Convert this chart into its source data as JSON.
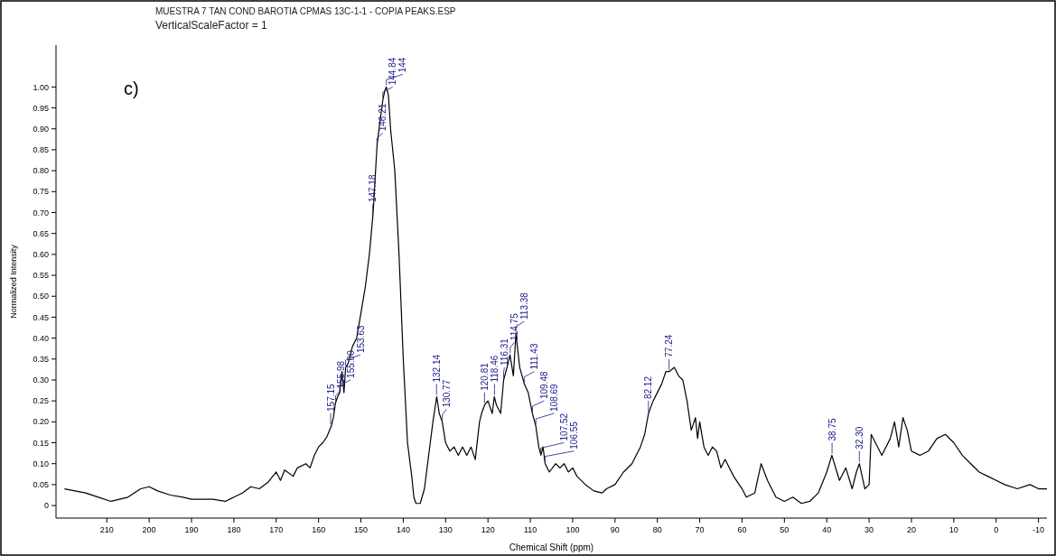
{
  "chart_data": {
    "type": "line",
    "title": "MUESTRA 7 TAN COND BAROTIA CPMAS 13C-1-1 - COPIA PEAKS.ESP",
    "subtitle": "VerticalScaleFactor = 1",
    "xlabel": "Chemical Shift (ppm)",
    "ylabel": "Normalized Intensity",
    "xlim": [
      222,
      -12
    ],
    "ylim": [
      -0.03,
      1.1
    ],
    "xticks": [
      210,
      200,
      190,
      180,
      170,
      160,
      150,
      140,
      130,
      120,
      110,
      100,
      90,
      80,
      70,
      60,
      50,
      40,
      30,
      20,
      10,
      0,
      -10
    ],
    "yticks": [
      0,
      {
        "value": 0.05,
        "label": "0.05"
      },
      {
        "value": 0.1,
        "label": "0.10"
      },
      {
        "value": 0.15,
        "label": "0.15"
      },
      {
        "value": 0.2,
        "label": "0.20"
      },
      {
        "value": 0.25,
        "label": "0.25"
      },
      {
        "value": 0.3,
        "label": "0.30"
      },
      {
        "value": 0.35,
        "label": "0.35"
      },
      {
        "value": 0.4,
        "label": "0.40"
      },
      {
        "value": 0.45,
        "label": "0.45"
      },
      {
        "value": 0.5,
        "label": "0.50"
      },
      {
        "value": 0.55,
        "label": "0.55"
      },
      {
        "value": 0.6,
        "label": "0.60"
      },
      {
        "value": 0.65,
        "label": "0.65"
      },
      {
        "value": 0.7,
        "label": "0.70"
      },
      {
        "value": 0.75,
        "label": "0.75"
      },
      {
        "value": 0.8,
        "label": "0.80"
      },
      {
        "value": 0.85,
        "label": "0.85"
      },
      {
        "value": 0.9,
        "label": "0.90"
      },
      {
        "value": 0.95,
        "label": "0.95"
      },
      {
        "value": 1,
        "label": "1.00"
      }
    ],
    "grid": false,
    "marker": "none",
    "line_style": "solid",
    "series": [
      {
        "color": "#000000",
        "x": [
          220,
          215,
          212,
          209,
          205,
          202,
          200,
          198,
          195,
          192,
          190,
          185,
          182,
          180,
          178,
          176,
          174,
          172,
          170,
          169,
          168,
          166,
          165,
          163,
          162,
          161,
          160,
          159,
          158,
          157,
          156.5,
          156,
          155.5,
          155,
          154.5,
          154,
          153.6,
          153,
          152,
          151,
          150,
          149,
          148,
          147.2,
          147,
          146.2,
          145.6,
          144.8,
          144.4,
          144,
          143.5,
          143,
          142,
          141,
          140,
          139,
          138,
          137.5,
          137,
          136,
          135,
          134,
          133,
          132.1,
          131.5,
          130.8,
          130,
          129,
          128,
          127,
          126,
          125,
          124,
          123,
          122,
          121.5,
          120.8,
          120,
          119,
          118.5,
          118,
          117,
          116.3,
          115.5,
          114.8,
          114,
          113.4,
          112.5,
          111.4,
          110.5,
          109.5,
          108.7,
          108,
          107.5,
          107,
          106.5,
          105.5,
          104,
          103,
          102,
          101,
          100,
          99,
          97,
          95,
          93,
          92,
          90,
          88,
          86,
          84,
          83,
          82.1,
          81,
          80,
          79,
          78,
          77.2,
          76,
          75,
          74,
          73,
          72,
          71,
          70.5,
          70,
          69,
          68,
          67,
          66,
          65,
          64,
          62,
          60,
          59,
          57,
          55.5,
          54,
          52,
          50,
          48,
          46,
          44,
          42,
          40,
          38.8,
          37,
          35.5,
          34,
          33,
          32.3,
          31,
          30,
          29.5,
          28,
          27,
          25,
          24,
          23,
          22,
          21,
          20,
          18,
          16,
          14,
          12,
          10,
          8,
          6,
          4,
          2,
          0,
          -2,
          -5,
          -8,
          -10,
          -12
        ],
        "values": [
          0.04,
          0.03,
          0.02,
          0.01,
          0.02,
          0.04,
          0.045,
          0.035,
          0.025,
          0.02,
          0.015,
          0.015,
          0.01,
          0.02,
          0.03,
          0.045,
          0.04,
          0.055,
          0.08,
          0.06,
          0.085,
          0.07,
          0.09,
          0.1,
          0.09,
          0.12,
          0.14,
          0.15,
          0.165,
          0.19,
          0.21,
          0.245,
          0.26,
          0.27,
          0.32,
          0.27,
          0.33,
          0.34,
          0.38,
          0.4,
          0.46,
          0.52,
          0.6,
          0.69,
          0.72,
          0.86,
          0.91,
          0.97,
          0.99,
          1,
          0.98,
          0.9,
          0.8,
          0.6,
          0.35,
          0.15,
          0.07,
          0.02,
          0.005,
          0.005,
          0.04,
          0.12,
          0.2,
          0.26,
          0.22,
          0.2,
          0.15,
          0.13,
          0.14,
          0.12,
          0.14,
          0.12,
          0.14,
          0.11,
          0.2,
          0.22,
          0.24,
          0.25,
          0.22,
          0.26,
          0.24,
          0.22,
          0.3,
          0.33,
          0.36,
          0.31,
          0.41,
          0.33,
          0.29,
          0.27,
          0.22,
          0.19,
          0.14,
          0.12,
          0.14,
          0.1,
          0.08,
          0.1,
          0.09,
          0.1,
          0.08,
          0.09,
          0.07,
          0.05,
          0.035,
          0.03,
          0.04,
          0.05,
          0.08,
          0.1,
          0.14,
          0.17,
          0.22,
          0.25,
          0.27,
          0.29,
          0.32,
          0.32,
          0.33,
          0.31,
          0.3,
          0.25,
          0.18,
          0.21,
          0.16,
          0.2,
          0.14,
          0.12,
          0.14,
          0.13,
          0.09,
          0.11,
          0.07,
          0.04,
          0.02,
          0.03,
          0.1,
          0.06,
          0.02,
          0.01,
          0.02,
          0.005,
          0.01,
          0.03,
          0.08,
          0.12,
          0.06,
          0.09,
          0.04,
          0.08,
          0.1,
          0.04,
          0.05,
          0.17,
          0.14,
          0.12,
          0.16,
          0.2,
          0.14,
          0.21,
          0.18,
          0.13,
          0.12,
          0.13,
          0.16,
          0.17,
          0.15,
          0.12,
          0.1,
          0.08,
          0.07,
          0.06,
          0.05,
          0.04,
          0.05,
          0.04,
          0.04
        ]
      }
    ],
    "annotations": [
      "c)",
      {
        "text": "157.15",
        "x": 157.15,
        "y": 0.19
      },
      {
        "text": "155.98",
        "x": 155.98,
        "y": 0.245
      },
      {
        "text": "155.00",
        "x": 155,
        "y": 0.27
      },
      {
        "text": "153.63",
        "x": 153.63,
        "y": 0.33
      },
      {
        "text": "147.18",
        "x": 147.18,
        "y": 0.69
      },
      {
        "text": "146.21",
        "x": 146.21,
        "y": 0.86
      },
      {
        "text": "144.84",
        "x": 144.84,
        "y": 0.97
      },
      {
        "text": "144",
        "x": 144,
        "y": 1
      },
      {
        "text": "132.14",
        "x": 132.14,
        "y": 0.26
      },
      {
        "text": "130.77",
        "x": 130.77,
        "y": 0.2
      },
      {
        "text": "120.81",
        "x": 120.81,
        "y": 0.24
      },
      {
        "text": "118.46",
        "x": 118.46,
        "y": 0.26
      },
      {
        "text": "116.31",
        "x": 116.31,
        "y": 0.3
      },
      {
        "text": "114.75",
        "x": 114.75,
        "y": 0.36
      },
      {
        "text": "113.38",
        "x": 113.38,
        "y": 0.41
      },
      {
        "text": "111.43",
        "x": 111.43,
        "y": 0.29
      },
      {
        "text": "109.48",
        "x": 109.48,
        "y": 0.22
      },
      {
        "text": "108.69",
        "x": 108.69,
        "y": 0.19
      },
      {
        "text": "107.52",
        "x": 107.52,
        "y": 0.12
      },
      {
        "text": "106.55",
        "x": 106.55,
        "y": 0.1
      },
      {
        "text": "82.12",
        "x": 82.12,
        "y": 0.22
      },
      {
        "text": "77.24",
        "x": 77.24,
        "y": 0.32
      },
      {
        "text": "38.75",
        "x": 38.75,
        "y": 0.12
      },
      {
        "text": "32.30",
        "x": 32.3,
        "y": 0.1
      }
    ]
  }
}
